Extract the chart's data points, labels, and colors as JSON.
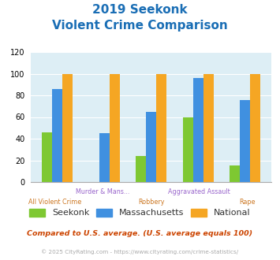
{
  "title_line1": "2019 Seekonk",
  "title_line2": "Violent Crime Comparison",
  "seekonk": [
    46,
    0,
    24,
    60,
    15
  ],
  "massachusetts": [
    86,
    45,
    65,
    96,
    76
  ],
  "national": [
    100,
    100,
    100,
    100,
    100
  ],
  "color_seekonk": "#7ec832",
  "color_massachusetts": "#4090e0",
  "color_national": "#f5a623",
  "ylim": [
    0,
    120
  ],
  "yticks": [
    0,
    20,
    40,
    60,
    80,
    100,
    120
  ],
  "bg_color": "#ddeef5",
  "title_color": "#1a6eb5",
  "xlabel_top_color": "#9966cc",
  "xlabel_bottom_color": "#cc7722",
  "footer_text": "Compared to U.S. average. (U.S. average equals 100)",
  "copyright_text": "© 2025 CityRating.com - https://www.cityrating.com/crime-statistics/",
  "footer_color": "#cc4400",
  "copyright_color": "#aaaaaa",
  "legend_label_color": "#333333"
}
